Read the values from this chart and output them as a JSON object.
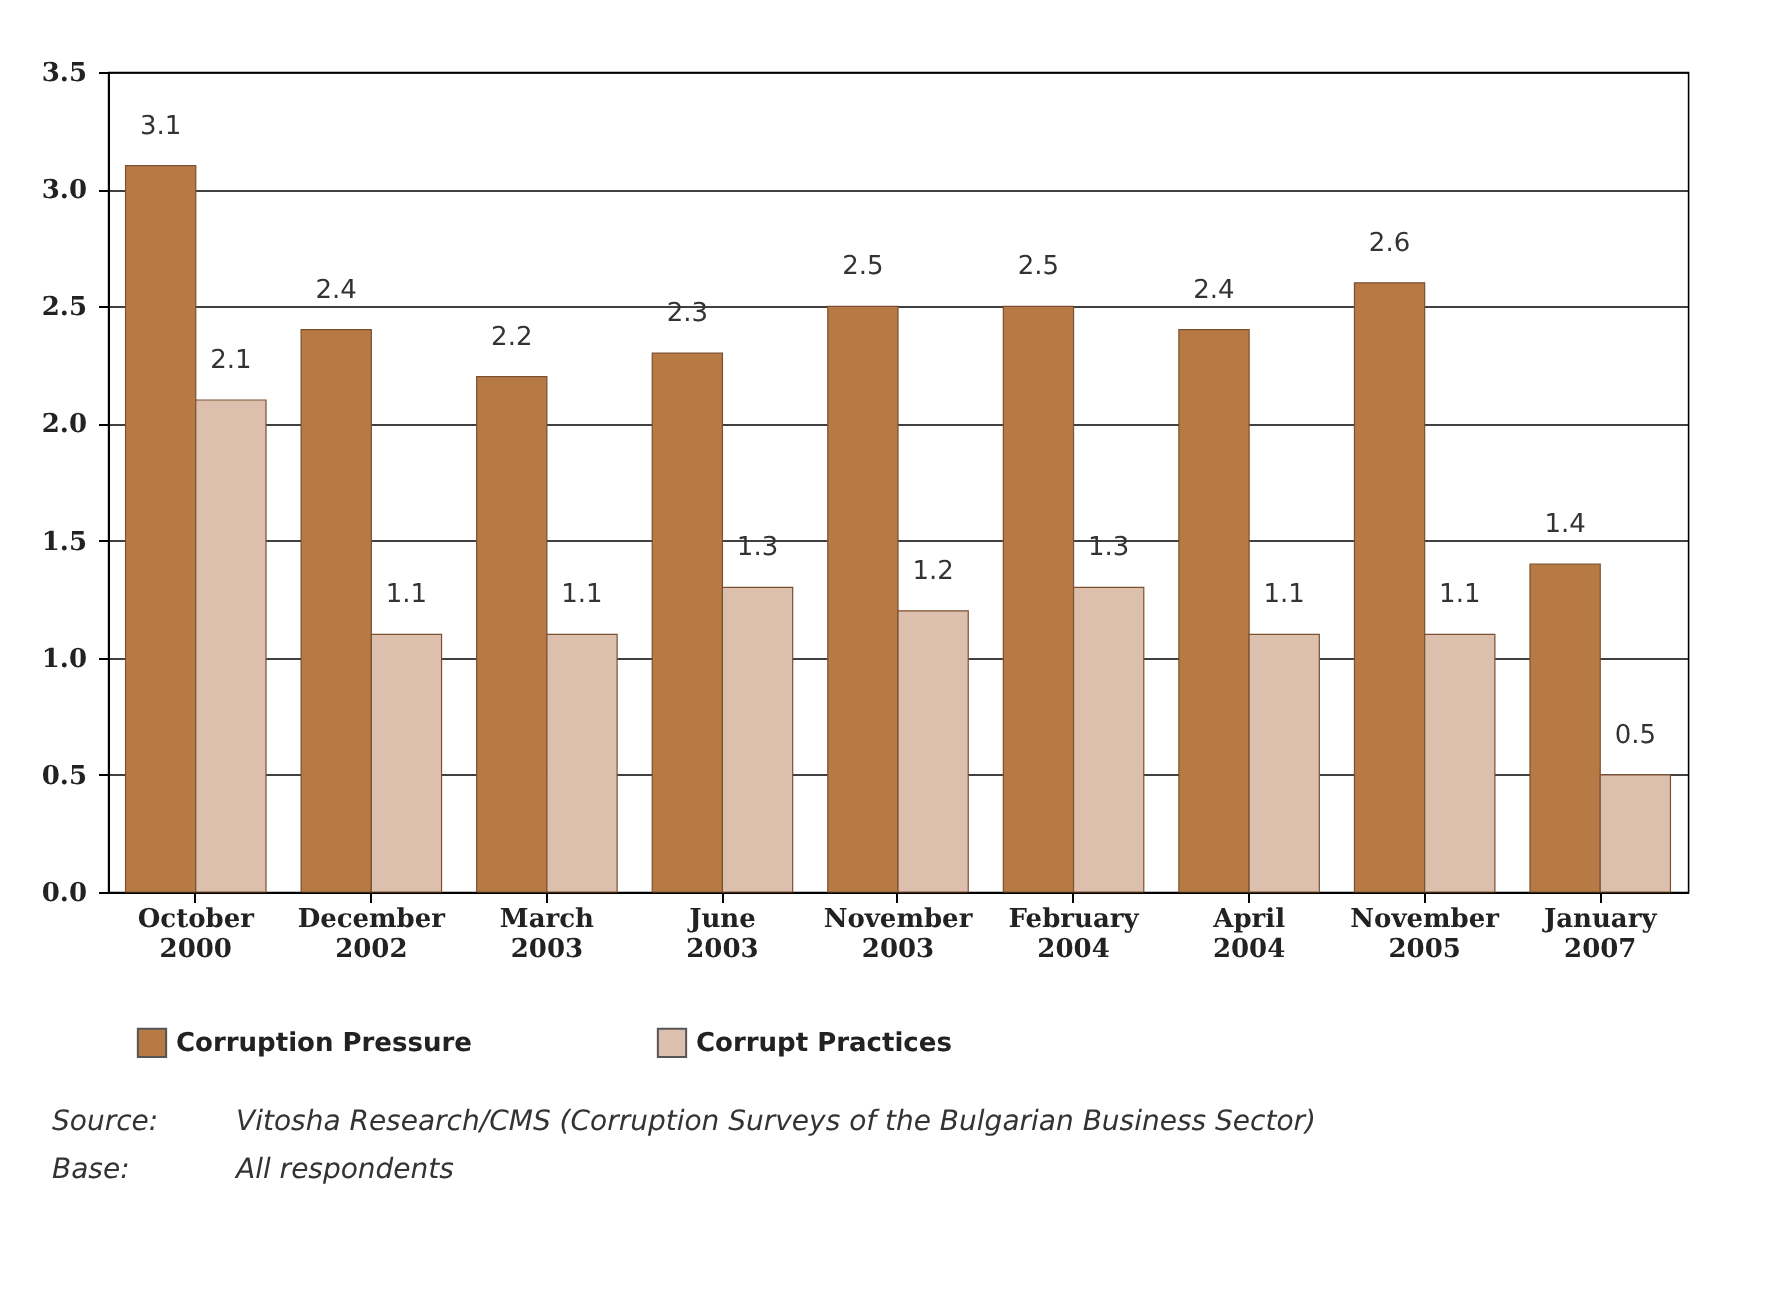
{
  "chart_data": {
    "type": "bar",
    "categories": [
      "October 2000",
      "December 2002",
      "March 2003",
      "June 2003",
      "November 2003",
      "February 2004",
      "April 2004",
      "November 2005",
      "January 2007"
    ],
    "series": [
      {
        "name": "Corruption Pressure",
        "color": "#b87a45",
        "values": [
          3.1,
          2.4,
          2.2,
          2.3,
          2.5,
          2.5,
          2.4,
          2.6,
          1.4
        ]
      },
      {
        "name": "Corrupt Practices",
        "color": "#dcc0ad",
        "values": [
          2.1,
          1.1,
          1.1,
          1.3,
          1.2,
          1.3,
          1.1,
          1.1,
          0.5
        ]
      }
    ],
    "ylim": [
      0,
      3.5
    ],
    "yticks": [
      {
        "value": 0,
        "label": "0.0"
      },
      {
        "value": 0.5,
        "label": "0.5"
      },
      {
        "value": 1,
        "label": "1.0"
      },
      {
        "value": 1.5,
        "label": "1.5"
      },
      {
        "value": 2,
        "label": "2.0"
      },
      {
        "value": 2.5,
        "label": "2.5"
      },
      {
        "value": 3,
        "label": "3.0"
      },
      {
        "value": 3.5,
        "label": "3.5"
      }
    ],
    "grid": "y",
    "legend": "bottom",
    "data_labels": true,
    "annotations": [
      "Source:\tVitosha Research/CMS (Corruption Surveys of the Bulgarian Business Sector)",
      "Base:\tAll respondents"
    ]
  }
}
